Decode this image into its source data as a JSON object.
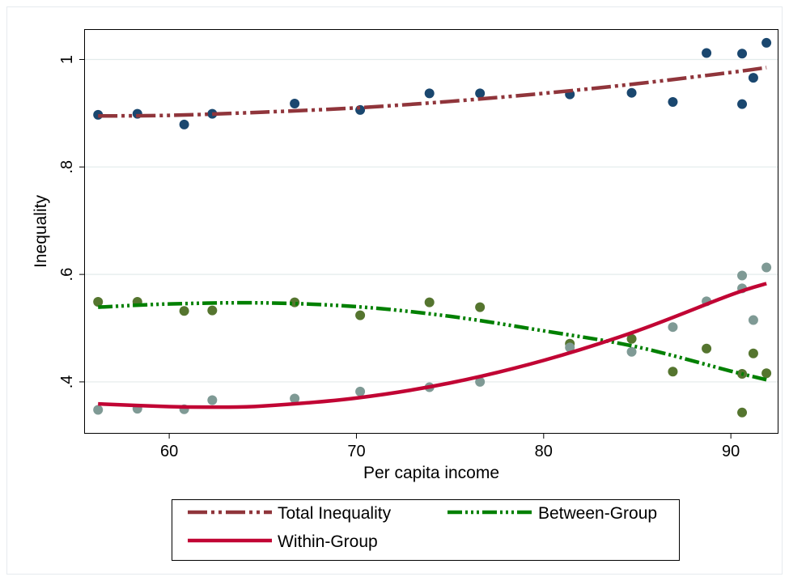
{
  "chart_data": {
    "type": "scatter",
    "title": "",
    "xlabel": "Per capita income",
    "ylabel": "Inequality",
    "xlim": [
      55.5,
      92.5
    ],
    "ylim": [
      0.305,
      1.055
    ],
    "x_ticks": [
      60,
      70,
      80,
      90
    ],
    "x_tick_labels": [
      "60",
      "70",
      "80",
      "90"
    ],
    "y_ticks": [
      0.4,
      0.6,
      0.8,
      1.0
    ],
    "y_tick_labels": [
      ".4",
      ".6",
      ".8",
      "1"
    ],
    "grid": "horizontal",
    "legend_position": "bottom",
    "x": [
      56.2,
      58.3,
      60.8,
      62.3,
      66.7,
      70.2,
      73.9,
      76.6,
      81.4,
      84.7,
      86.9,
      88.7,
      90.6,
      90.6,
      91.2,
      91.9
    ],
    "series": [
      {
        "name": "Total Inequality",
        "marker_color": "#1a476f",
        "line_color": "#90353b",
        "line_style": "dash-dot",
        "values": [
          0.897,
          0.899,
          0.879,
          0.899,
          0.918,
          0.906,
          0.937,
          0.937,
          0.935,
          0.938,
          0.921,
          1.012,
          1.011,
          0.917,
          0.966,
          1.031
        ],
        "fit_x": [
          56.2,
          60,
          65,
          70,
          75,
          80,
          85,
          90,
          91.9
        ],
        "fit_y": [
          0.895,
          0.896,
          0.902,
          0.91,
          0.922,
          0.937,
          0.955,
          0.976,
          0.985
        ]
      },
      {
        "name": "Between-Group",
        "marker_color": "#55752f",
        "line_color": "#008000",
        "line_style": "dash-dot-dot",
        "values": [
          0.549,
          0.549,
          0.532,
          0.533,
          0.548,
          0.524,
          0.548,
          0.539,
          0.471,
          0.48,
          0.419,
          0.462,
          0.415,
          0.343,
          0.453,
          0.416
        ],
        "fit_x": [
          56.2,
          60,
          65,
          70,
          75,
          80,
          85,
          90,
          91.9
        ],
        "fit_y": [
          0.539,
          0.545,
          0.547,
          0.54,
          0.522,
          0.495,
          0.465,
          0.42,
          0.404
        ]
      },
      {
        "name": "Within-Group",
        "marker_color": "#7f9a95",
        "line_color": "#c10534",
        "line_style": "solid",
        "values": [
          0.348,
          0.35,
          0.349,
          0.366,
          0.369,
          0.382,
          0.39,
          0.4,
          0.464,
          0.456,
          0.502,
          0.55,
          0.598,
          0.574,
          0.515,
          0.613
        ],
        "fit_x": [
          56.2,
          60,
          62.5,
          65,
          70,
          75,
          80,
          85,
          90,
          91.9
        ],
        "fit_y": [
          0.359,
          0.354,
          0.353,
          0.355,
          0.37,
          0.398,
          0.44,
          0.495,
          0.562,
          0.583
        ]
      }
    ],
    "legend_items": [
      "Total Inequality",
      "Between-Group",
      "Within-Group"
    ]
  }
}
